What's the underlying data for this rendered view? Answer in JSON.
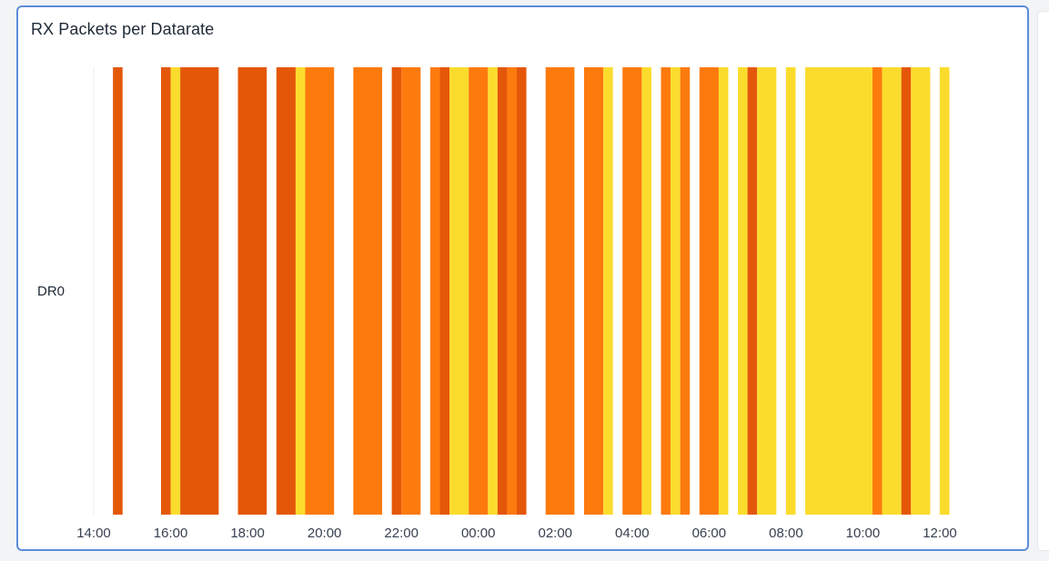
{
  "panel": {
    "title": "RX Packets per Datarate"
  },
  "chart_data": {
    "type": "heatmap",
    "title": "RX Packets per Datarate",
    "rows": [
      "DR0"
    ],
    "x_ticks": [
      "14:00",
      "16:00",
      "18:00",
      "20:00",
      "22:00",
      "00:00",
      "02:00",
      "04:00",
      "06:00",
      "08:00",
      "10:00",
      "12:00"
    ],
    "x_range_hours": [
      14,
      36
    ],
    "grid": true,
    "legend": "none",
    "colors": {
      "dark": "#e45709",
      "mid": "#fd7a0d",
      "light": "#fbdc2d"
    },
    "segments": [
      {
        "start": 14.5,
        "end": 14.75,
        "level": "dark"
      },
      {
        "start": 15.75,
        "end": 16.0,
        "level": "dark"
      },
      {
        "start": 16.0,
        "end": 16.25,
        "level": "light"
      },
      {
        "start": 16.25,
        "end": 17.25,
        "level": "dark"
      },
      {
        "start": 17.75,
        "end": 18.5,
        "level": "dark"
      },
      {
        "start": 18.75,
        "end": 19.25,
        "level": "dark"
      },
      {
        "start": 19.25,
        "end": 19.5,
        "level": "light"
      },
      {
        "start": 19.5,
        "end": 20.25,
        "level": "mid"
      },
      {
        "start": 20.75,
        "end": 21.5,
        "level": "mid"
      },
      {
        "start": 21.75,
        "end": 22.0,
        "level": "dark"
      },
      {
        "start": 22.0,
        "end": 22.5,
        "level": "mid"
      },
      {
        "start": 22.75,
        "end": 23.0,
        "level": "mid"
      },
      {
        "start": 23.0,
        "end": 23.25,
        "level": "dark"
      },
      {
        "start": 23.25,
        "end": 23.75,
        "level": "light"
      },
      {
        "start": 23.75,
        "end": 24.25,
        "level": "mid"
      },
      {
        "start": 24.25,
        "end": 24.5,
        "level": "light"
      },
      {
        "start": 24.5,
        "end": 24.75,
        "level": "dark"
      },
      {
        "start": 24.75,
        "end": 25.0,
        "level": "mid"
      },
      {
        "start": 25.0,
        "end": 25.25,
        "level": "dark"
      },
      {
        "start": 25.75,
        "end": 26.5,
        "level": "mid"
      },
      {
        "start": 26.75,
        "end": 27.25,
        "level": "mid"
      },
      {
        "start": 27.25,
        "end": 27.5,
        "level": "light"
      },
      {
        "start": 27.75,
        "end": 28.25,
        "level": "mid"
      },
      {
        "start": 28.25,
        "end": 28.5,
        "level": "light"
      },
      {
        "start": 28.75,
        "end": 29.0,
        "level": "mid"
      },
      {
        "start": 29.0,
        "end": 29.25,
        "level": "light"
      },
      {
        "start": 29.25,
        "end": 29.5,
        "level": "mid"
      },
      {
        "start": 29.75,
        "end": 30.25,
        "level": "mid"
      },
      {
        "start": 30.25,
        "end": 30.5,
        "level": "light"
      },
      {
        "start": 30.75,
        "end": 31.0,
        "level": "light"
      },
      {
        "start": 31.0,
        "end": 31.25,
        "level": "dark"
      },
      {
        "start": 31.25,
        "end": 31.75,
        "level": "light"
      },
      {
        "start": 32.0,
        "end": 32.25,
        "level": "light"
      },
      {
        "start": 32.5,
        "end": 34.25,
        "level": "light"
      },
      {
        "start": 34.25,
        "end": 34.5,
        "level": "mid"
      },
      {
        "start": 34.5,
        "end": 35.0,
        "level": "light"
      },
      {
        "start": 35.0,
        "end": 35.25,
        "level": "dark"
      },
      {
        "start": 35.25,
        "end": 35.75,
        "level": "light"
      },
      {
        "start": 36.0,
        "end": 36.25,
        "level": "light"
      }
    ]
  }
}
